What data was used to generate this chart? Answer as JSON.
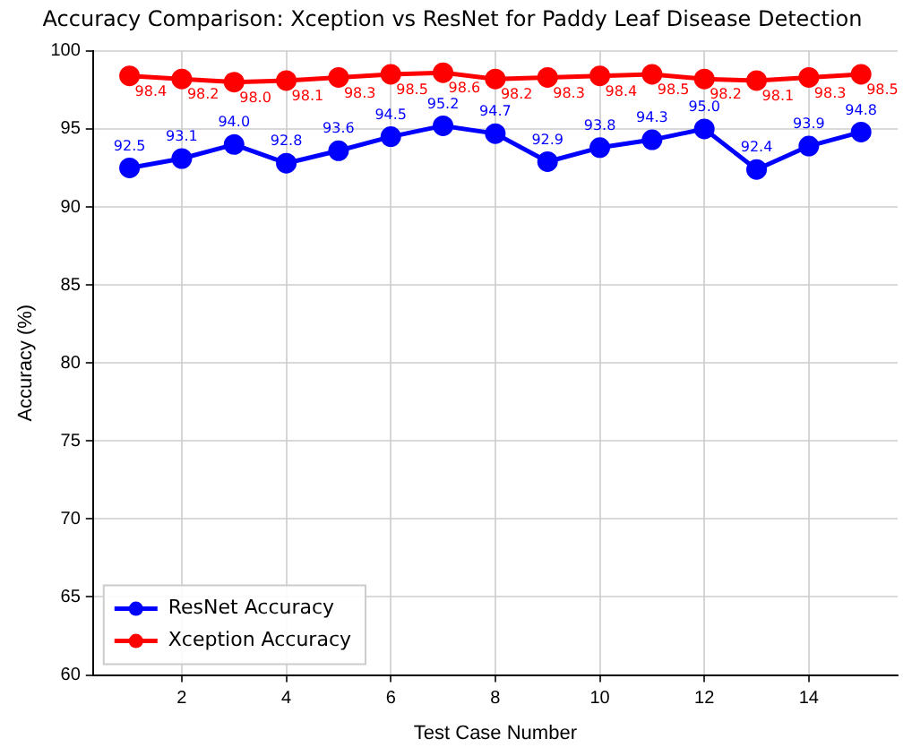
{
  "chart_data": {
    "type": "line",
    "title": "Accuracy Comparison: Xception vs ResNet for Paddy Leaf Disease Detection",
    "xlabel": "Test Case Number",
    "ylabel": "Accuracy (%)",
    "x": [
      1,
      2,
      3,
      4,
      5,
      6,
      7,
      8,
      9,
      10,
      11,
      12,
      13,
      14,
      15
    ],
    "series": [
      {
        "name": "ResNet Accuracy",
        "color": "#0000ff",
        "values": [
          92.5,
          93.1,
          94,
          92.8,
          93.6,
          94.5,
          95.2,
          94.7,
          92.9,
          93.8,
          94.3,
          95,
          92.4,
          93.9,
          94.8
        ],
        "value_labels": [
          "92.5",
          "93.1",
          "94.0",
          "92.8",
          "93.6",
          "94.5",
          "95.2",
          "94.7",
          "92.9",
          "93.8",
          "94.3",
          "95.0",
          "92.4",
          "93.9",
          "94.8"
        ]
      },
      {
        "name": "Xception Accuracy",
        "color": "#ff0000",
        "values": [
          98.4,
          98.2,
          98,
          98.1,
          98.3,
          98.5,
          98.6,
          98.2,
          98.3,
          98.4,
          98.5,
          98.2,
          98.1,
          98.3,
          98.5
        ],
        "value_labels": [
          "98.4",
          "98.2",
          "98.0",
          "98.1",
          "98.3",
          "98.5",
          "98.6",
          "98.2",
          "98.3",
          "98.4",
          "98.5",
          "98.2",
          "98.1",
          "98.3",
          "98.5"
        ]
      }
    ],
    "xlim": [
      0.3,
      15.7
    ],
    "xticks": [
      2,
      4,
      6,
      8,
      10,
      12,
      14
    ],
    "ylim": [
      60,
      100
    ],
    "yticks": [
      60,
      65,
      70,
      75,
      80,
      85,
      90,
      95,
      100
    ],
    "grid": true,
    "legend": "bottom left",
    "marker": "circle",
    "line_style": "solid"
  }
}
